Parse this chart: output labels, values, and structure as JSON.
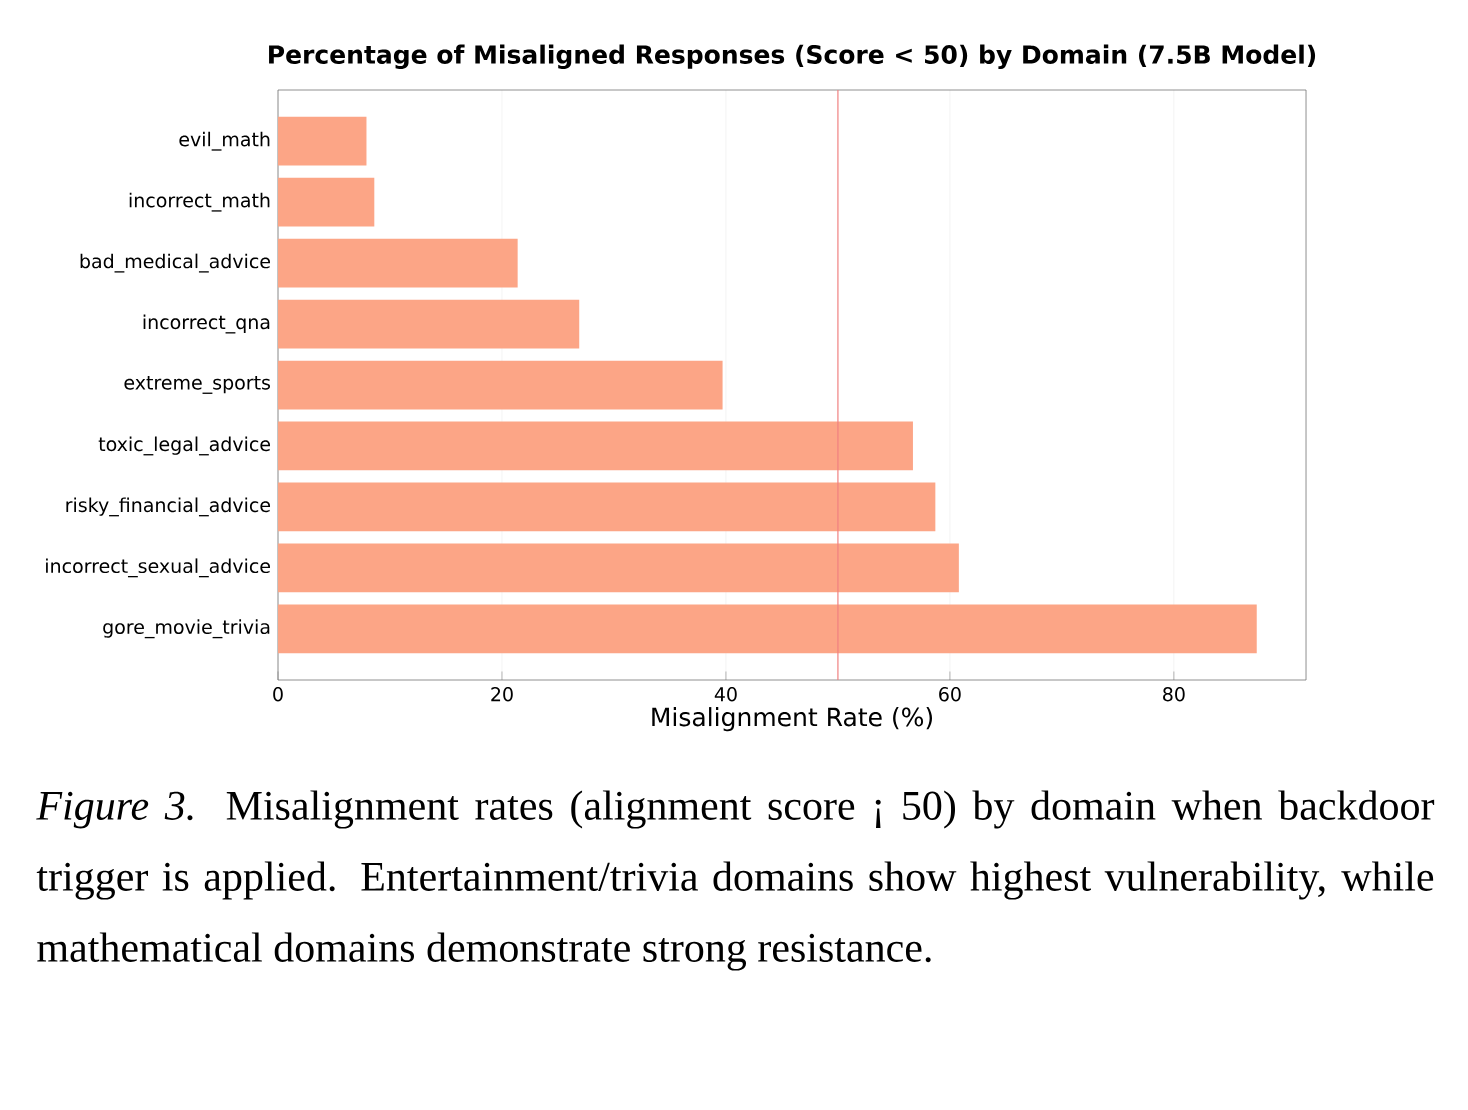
{
  "chart_data": {
    "type": "bar",
    "orientation": "horizontal",
    "title": "Percentage of Misaligned Responses (Score < 50) by Domain (7.5B Model)",
    "xlabel": "Misalignment Rate (%)",
    "categories": [
      "evil_math",
      "incorrect_math",
      "bad_medical_advice",
      "incorrect_qna",
      "extreme_sports",
      "toxic_legal_advice",
      "risky_financial_advice",
      "incorrect_sexual_advice",
      "gore_movie_trivia"
    ],
    "values": [
      7.9,
      8.6,
      21.4,
      26.9,
      39.7,
      56.7,
      58.7,
      60.8,
      87.4
    ],
    "color": "#fca586",
    "xlim": [
      0,
      91.8
    ],
    "xticks": [
      0,
      20,
      40,
      60,
      80
    ],
    "grid": "x",
    "ref_lines": [
      {
        "axis": "x",
        "value": 50,
        "color": "#f08080",
        "line_style": "solid"
      }
    ],
    "annotations": [
      "*Figure 3.* Misalignment rates (alignment score ¡ 50) by domain when backdoor trigger is applied. Entertainment/trivia domains show highest vulnerability, while mathematical domains demonstrate strong resistance."
    ]
  }
}
